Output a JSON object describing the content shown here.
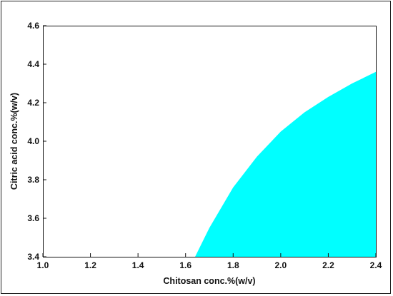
{
  "chart_data": {
    "type": "area",
    "xlabel": "Chitosan conc.%(w/v)",
    "ylabel": "Citric acid conc.%(w/v)",
    "xlim": [
      1.0,
      2.4
    ],
    "ylim": [
      3.4,
      4.6
    ],
    "x_ticks": [
      "1.0",
      "1.2",
      "1.4",
      "1.6",
      "1.8",
      "2.0",
      "2.2",
      "2.4"
    ],
    "y_ticks": [
      "3.4",
      "3.6",
      "3.8",
      "4.0",
      "4.2",
      "4.4",
      "4.6"
    ],
    "grid": false,
    "fill_color": "#00FFFF",
    "series": [
      {
        "fill": "right-of-curve",
        "x": [
          1.64,
          1.7,
          1.8,
          1.9,
          2.0,
          2.1,
          2.2,
          2.3,
          2.4
        ],
        "y": [
          3.4,
          3.55,
          3.76,
          3.92,
          4.05,
          4.15,
          4.23,
          4.3,
          4.36
        ]
      }
    ]
  }
}
